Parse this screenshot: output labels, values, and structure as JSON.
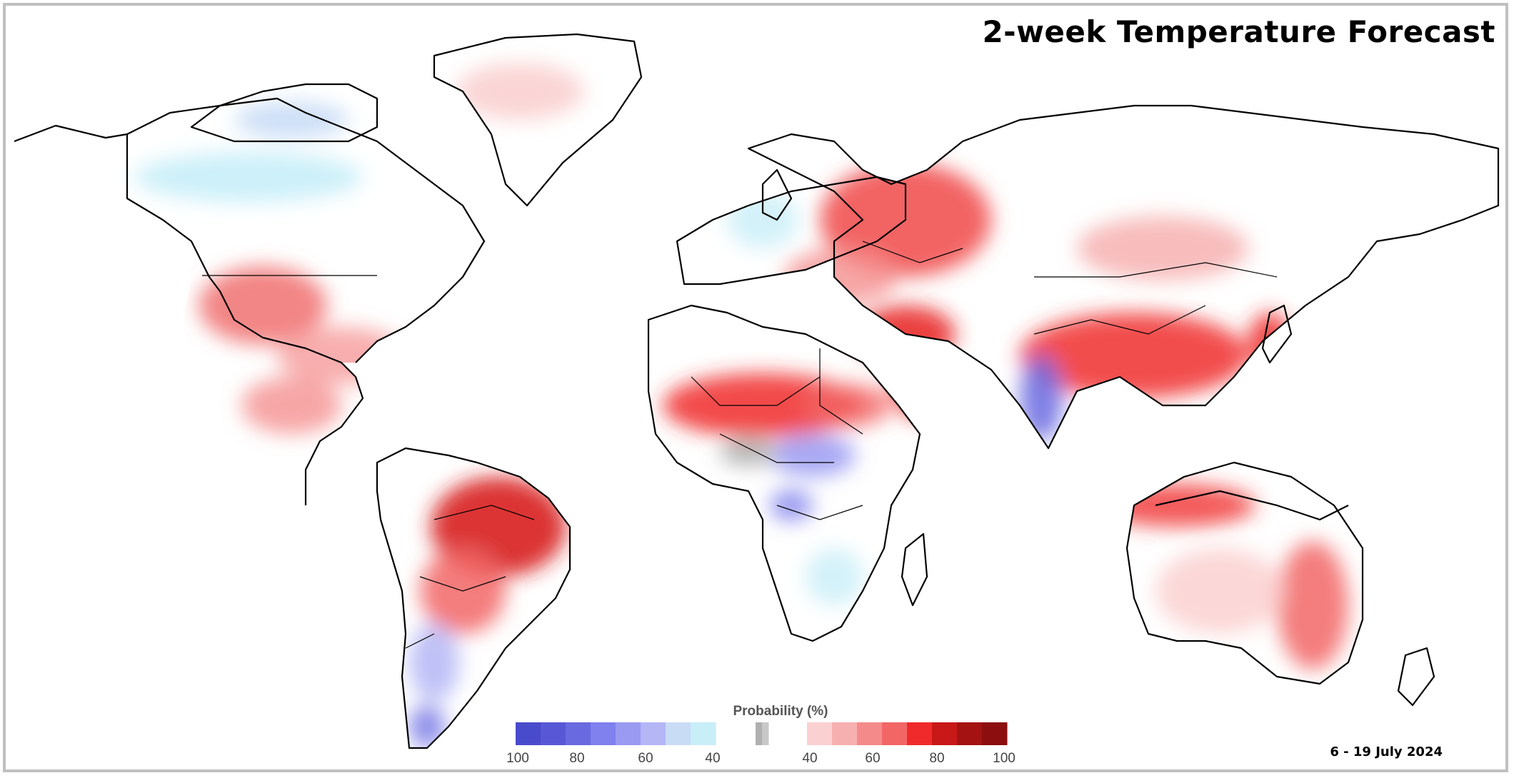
{
  "title": "2-week Temperature Forecast",
  "date_range": "6 - 19 July 2024",
  "legend": {
    "title": "Probability (%)",
    "below_normal_ticks": [
      "100",
      "80",
      "60",
      "40"
    ],
    "above_normal_ticks": [
      "40",
      "60",
      "80",
      "100"
    ],
    "below_colors": [
      "#4a4acc",
      "#5858d6",
      "#6a6ae0",
      "#8080ee",
      "#9a9af2",
      "#b4b6f6",
      "#c8dcf6",
      "#c8eef8"
    ],
    "near_normal_colors": [
      "#b0b0b0",
      "#c8c8c8"
    ],
    "above_colors": [
      "#fbd0d0",
      "#f7b0b0",
      "#f58a8a",
      "#f26666",
      "#f02a2a",
      "#c81818",
      "#a41212",
      "#8c0e0e"
    ]
  },
  "map": {
    "projection": "equirectangular",
    "land_color": "#ffffff",
    "border_color": "#000000",
    "anomaly_regions": [
      {
        "name": "Western United States",
        "level": "above",
        "prob": 55
      },
      {
        "name": "Southern United States",
        "level": "above",
        "prob": 45
      },
      {
        "name": "Mexico and Central America",
        "level": "above",
        "prob": 50
      },
      {
        "name": "Northern Canada",
        "level": "below",
        "prob": 40
      },
      {
        "name": "Amazon and Brazil",
        "level": "above",
        "prob": 80
      },
      {
        "name": "Argentina and Patagonia",
        "level": "below",
        "prob": 55
      },
      {
        "name": "Sahara and Sahel",
        "level": "above",
        "prob": 70
      },
      {
        "name": "Central Africa",
        "level": "below",
        "prob": 55
      },
      {
        "name": "Eastern Europe and Western Russia",
        "level": "above",
        "prob": 65
      },
      {
        "name": "Turkey, Iraq and Iran",
        "level": "above",
        "prob": 70
      },
      {
        "name": "Arabian Peninsula",
        "level": "above",
        "prob": 60
      },
      {
        "name": "Central India",
        "level": "below",
        "prob": 65
      },
      {
        "name": "China",
        "level": "above",
        "prob": 65
      },
      {
        "name": "Japan",
        "level": "above",
        "prob": 70
      },
      {
        "name": "Southeast Asia and Indonesia",
        "level": "above",
        "prob": 65
      },
      {
        "name": "Eastern Australia",
        "level": "above",
        "prob": 60
      },
      {
        "name": "Greenland",
        "level": "above",
        "prob": 40
      }
    ]
  }
}
